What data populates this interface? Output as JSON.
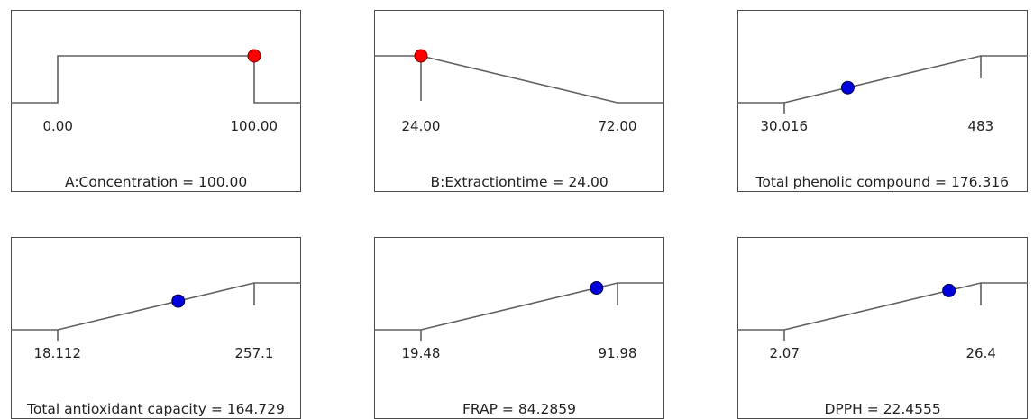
{
  "chart_data": {
    "type": "desirability-ramps",
    "panels": [
      {
        "min_label": "0.00",
        "max_label": "100.00",
        "min": 0,
        "max": 100,
        "value": 100,
        "goal": "in-range",
        "marker": "red",
        "title": "A:Concentration = 100.00"
      },
      {
        "min_label": "24.00",
        "max_label": "72.00",
        "min": 24,
        "max": 72,
        "value": 24,
        "goal": "minimize",
        "marker": "red",
        "title": "B:Extractiontime = 24.00"
      },
      {
        "min_label": "30.016",
        "max_label": "483",
        "min": 30.016,
        "max": 483,
        "value": 176.316,
        "goal": "maximize",
        "marker": "blue",
        "title": "Total phenolic compound = 176.316"
      },
      {
        "min_label": "18.112",
        "max_label": "257.1",
        "min": 18.112,
        "max": 257.1,
        "value": 164.729,
        "goal": "maximize",
        "marker": "blue",
        "title": "Total antioxidant capacity = 164.729"
      },
      {
        "min_label": "19.48",
        "max_label": "91.98",
        "min": 19.48,
        "max": 91.98,
        "value": 84.2859,
        "goal": "maximize",
        "marker": "blue",
        "title": "FRAP = 84.2859"
      },
      {
        "min_label": "2.07",
        "max_label": "26.4",
        "min": 2.07,
        "max": 26.4,
        "value": 22.4555,
        "goal": "maximize",
        "marker": "blue",
        "title": "DPPH = 22.4555"
      }
    ],
    "colors": {
      "red": "#ff0000",
      "blue": "#0000dd",
      "line": "#606060"
    }
  }
}
